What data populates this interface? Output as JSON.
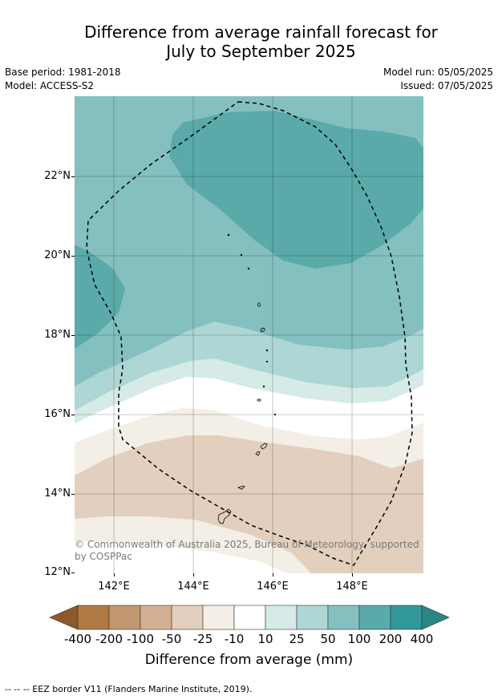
{
  "title": {
    "line1": "Difference from average rainfall forecast for",
    "line2": "July to September 2025"
  },
  "meta": {
    "base_period": "Base period: 1981-2018",
    "model": "Model: ACCESS-S2",
    "model_run": "Model run: 05/05/2025",
    "issued": "Issued: 07/05/2025"
  },
  "map": {
    "lat_labels": [
      "22°N",
      "20°N",
      "18°N",
      "16°N",
      "14°N",
      "12°N"
    ],
    "lon_labels": [
      "142°E",
      "144°E",
      "146°E",
      "148°E"
    ],
    "credit": "© Commonwealth of Australia 2025, Bureau of Meteorology, supported by COSPPac"
  },
  "colorbar": {
    "labels": [
      "-400",
      "-200",
      "-100",
      "-50",
      "-25",
      "-10",
      "10",
      "25",
      "50",
      "100",
      "200",
      "400"
    ],
    "colors": [
      "#8c5a2b",
      "#b07a45",
      "#c29770",
      "#d4b192",
      "#e3cfbd",
      "#f3eee6",
      "#ffffff",
      "#d6eae8",
      "#add6d4",
      "#84c0bf",
      "#5aaaaa",
      "#339998",
      "#2a8684"
    ],
    "title": "Difference from average (mm)"
  },
  "footnote": "--  --  -- EEZ border V11 (Flanders Marine Institute, 2019)."
}
